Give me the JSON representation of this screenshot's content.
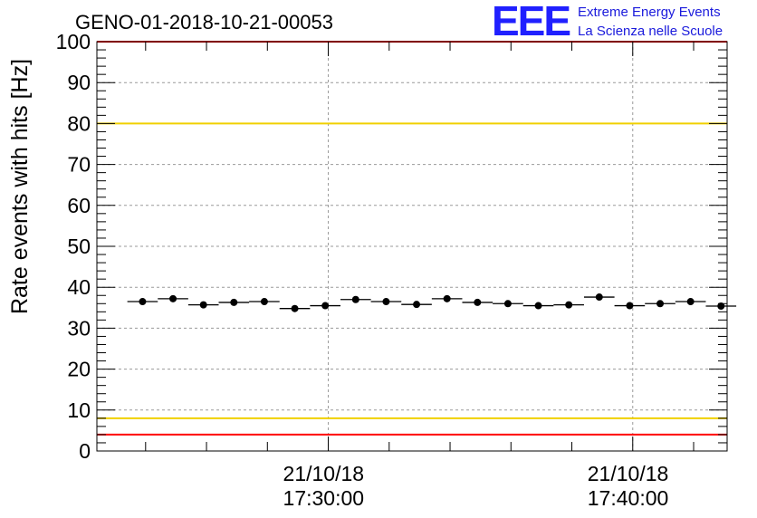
{
  "header": {
    "run_id": "GENO-01-2018-10-21-00053",
    "logo_text": "EEE",
    "logo_line1": "Extreme Energy Events",
    "logo_line2": "La Scienza nelle Scuole"
  },
  "colors": {
    "red_limit": "#ff0000",
    "yellow_limit": "#f0d000",
    "points": "#000000",
    "grid": "#9a9a9a",
    "logo": "#2020ff"
  },
  "chart_data": {
    "type": "scatter",
    "title": "GENO-01-2018-10-21-00053",
    "ylabel": "Rate events with hits [Hz]",
    "xlabel": "",
    "ylim": [
      0,
      100
    ],
    "yticks": [
      0,
      10,
      20,
      30,
      40,
      50,
      60,
      70,
      80,
      90,
      100
    ],
    "xlim_minutes": [
      -7.6,
      13.1
    ],
    "x_tick_labels": [
      {
        "date": "21/10/18",
        "time": "17:30:00",
        "minute": 0
      },
      {
        "date": "21/10/18",
        "time": "17:40:00",
        "minute": 10
      }
    ],
    "bin_width_minutes": 1,
    "x_centers_minutes": [
      -6.1,
      -5.1,
      -4.1,
      -3.1,
      -2.1,
      -1.1,
      -0.1,
      0.9,
      1.9,
      2.9,
      3.9,
      4.9,
      5.9,
      6.9,
      7.9,
      8.9,
      9.9,
      10.9,
      11.9,
      12.9
    ],
    "values": [
      36.5,
      37.2,
      35.7,
      36.3,
      36.5,
      34.8,
      35.5,
      37.0,
      36.5,
      35.8,
      37.2,
      36.3,
      36.0,
      35.5,
      35.7,
      37.6,
      35.5,
      36.0,
      36.5,
      35.4
    ],
    "errors": [
      0.4,
      0.4,
      0.4,
      0.4,
      0.4,
      0.4,
      0.4,
      0.4,
      0.4,
      0.4,
      0.4,
      0.4,
      0.4,
      0.4,
      0.4,
      0.4,
      0.4,
      0.4,
      0.4,
      0.4
    ],
    "reference_lines": [
      {
        "value": 100,
        "color": "red"
      },
      {
        "value": 80,
        "color": "yellow"
      },
      {
        "value": 8,
        "color": "yellow"
      },
      {
        "value": 4,
        "color": "red"
      }
    ],
    "grid": true
  }
}
